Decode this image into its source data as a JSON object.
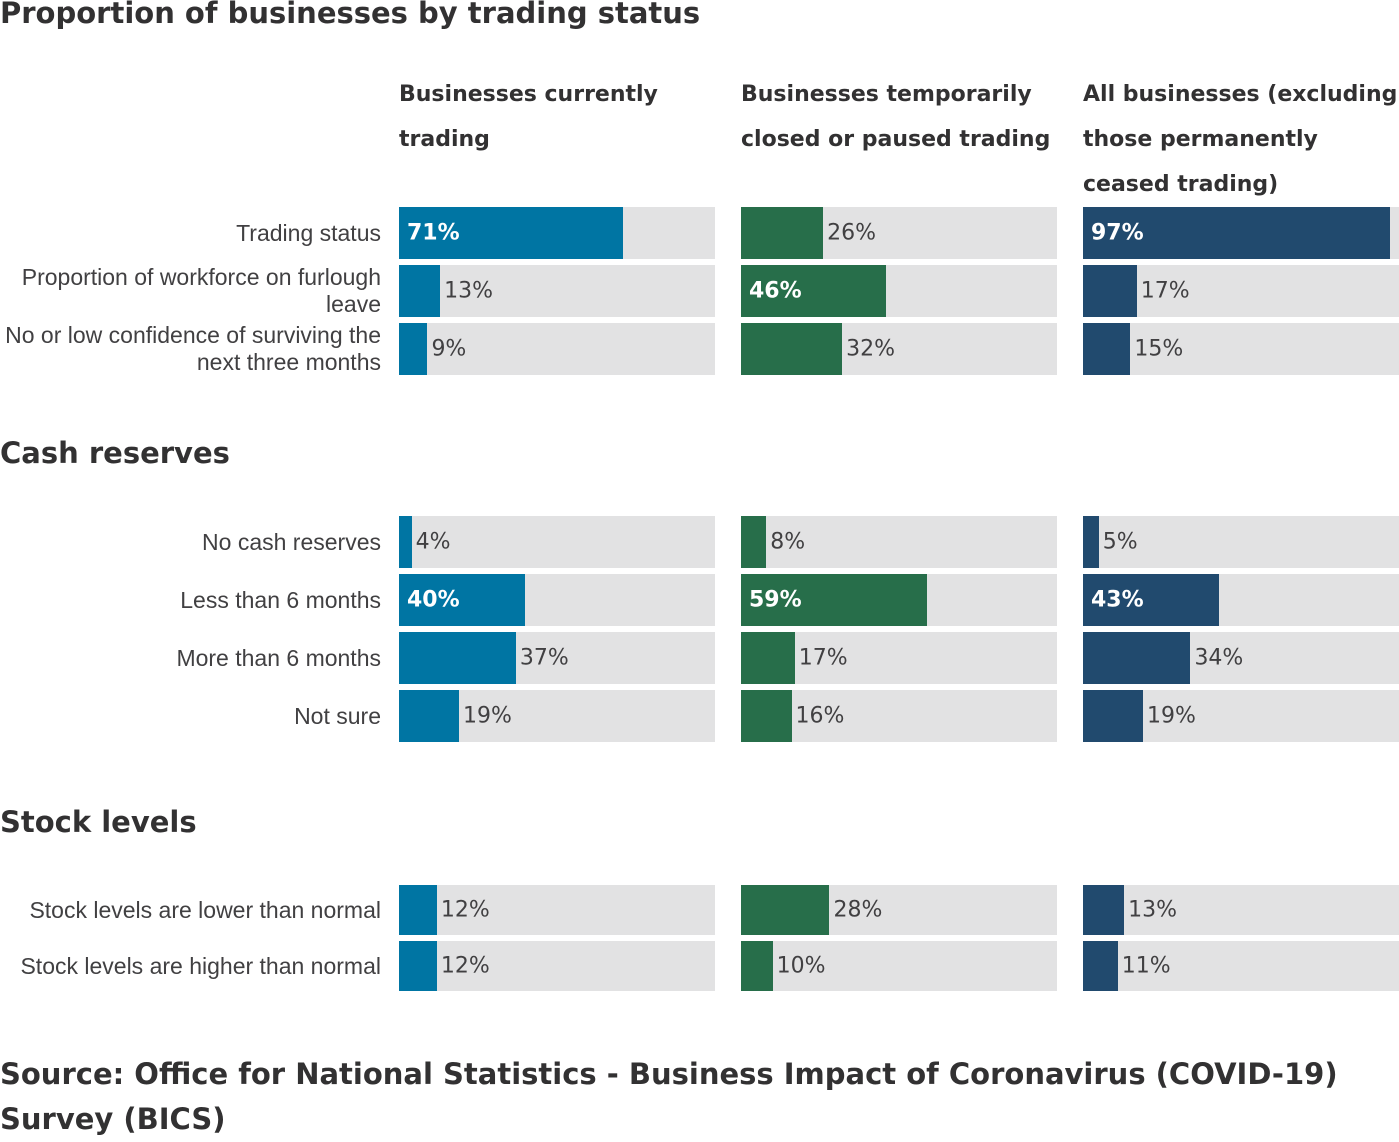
{
  "chart_data": {
    "type": "bar",
    "orientation": "horizontal",
    "title": "Proportion of businesses by trading status",
    "xlim": [
      0,
      100
    ],
    "unit": "%",
    "series": [
      {
        "name": "Businesses currently trading",
        "color": "#0075a3"
      },
      {
        "name": "Businesses temporarily closed or paused trading",
        "color": "#276e4a"
      },
      {
        "name": "All businesses (excluding those permanently ceased trading)",
        "color": "#214a6e"
      }
    ],
    "groups": [
      {
        "title": "",
        "categories": [
          "Trading status",
          "Proportion of workforce on furlough leave",
          "No or low confidence of surviving the next three months"
        ],
        "values": [
          [
            71,
            13,
            9
          ],
          [
            26,
            46,
            32
          ],
          [
            97,
            17,
            15
          ]
        ]
      },
      {
        "title": "Cash reserves",
        "categories": [
          "No cash reserves",
          "Less than 6 months",
          "More than 6 months",
          "Not sure"
        ],
        "values": [
          [
            4,
            40,
            37,
            19
          ],
          [
            8,
            59,
            17,
            16
          ],
          [
            5,
            43,
            34,
            19
          ]
        ]
      },
      {
        "title": "Stock levels",
        "categories": [
          "Stock levels are lower than normal",
          "Stock levels are higher than normal"
        ],
        "values": [
          [
            12,
            12
          ],
          [
            28,
            10
          ],
          [
            13,
            11
          ]
        ]
      }
    ],
    "source": "Source: Office for National Statistics - Business Impact of Coronavirus (COVID-19) Survey (BICS)"
  }
}
